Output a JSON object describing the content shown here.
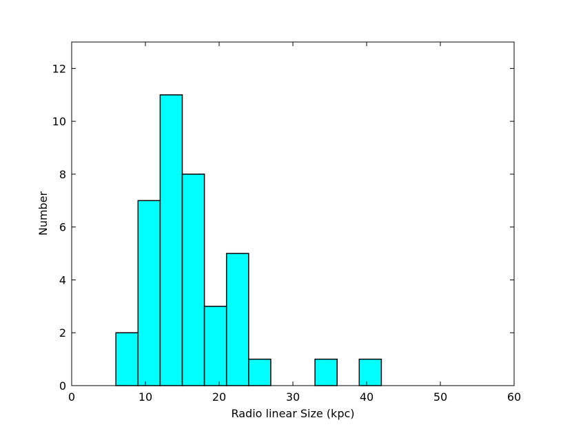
{
  "chart_data": {
    "type": "bar",
    "histogram": true,
    "bins": [
      {
        "x0": 6,
        "x1": 9,
        "count": 2
      },
      {
        "x0": 9,
        "x1": 12,
        "count": 7
      },
      {
        "x0": 12,
        "x1": 15,
        "count": 11
      },
      {
        "x0": 15,
        "x1": 18,
        "count": 8
      },
      {
        "x0": 18,
        "x1": 21,
        "count": 3
      },
      {
        "x0": 21,
        "x1": 24,
        "count": 5
      },
      {
        "x0": 24,
        "x1": 27,
        "count": 1
      },
      {
        "x0": 33,
        "x1": 36,
        "count": 1
      },
      {
        "x0": 39,
        "x1": 42,
        "count": 1
      }
    ],
    "title": "",
    "xlabel": "Radio linear Size (kpc)",
    "ylabel": "Number",
    "xlim": [
      0,
      60
    ],
    "ylim": [
      0,
      13
    ],
    "xticks": [
      0,
      10,
      20,
      30,
      40,
      50,
      60
    ],
    "yticks": [
      0,
      2,
      4,
      6,
      8,
      10,
      12
    ],
    "grid": false,
    "legend": "none",
    "colors": {
      "bar_fill": "#00ffff",
      "bar_edge": "#000000",
      "axes": "#000000"
    }
  }
}
